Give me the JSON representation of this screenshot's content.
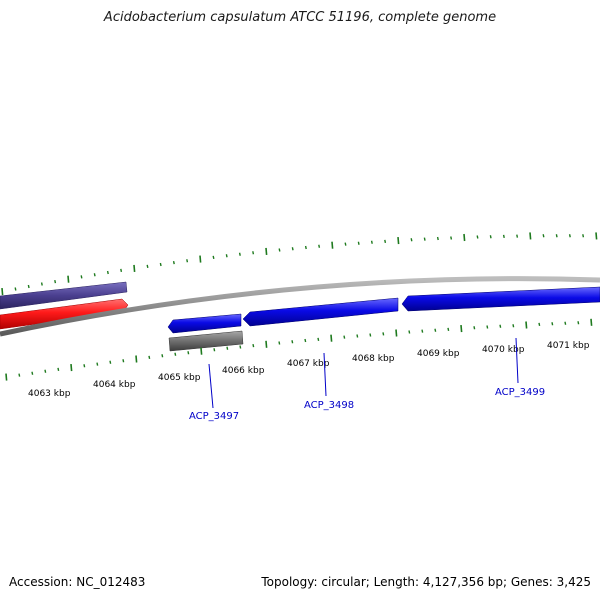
{
  "title": "Acidobacterium capsulatum ATCC 51196, complete genome",
  "footer": {
    "accession": "Accession: NC_012483",
    "summary": "Topology: circular; Length: 4,127,356 bp; Genes: 3,425"
  },
  "colors": {
    "background": "#ffffff",
    "backbone": "#8c8c8c",
    "tick": "#1e7a1e",
    "forward_track": "#4a3f8f",
    "red_track": "#ff1a1a",
    "reverse_gene": "#0a0ae6",
    "grey_feature": "#6e6e6e",
    "gene_label": "#0000c8"
  },
  "scale_labels": [
    "4063 kbp",
    "4064 kbp",
    "4065 kbp",
    "4066 kbp",
    "4067 kbp",
    "4068 kbp",
    "4069 kbp",
    "4070 kbp",
    "4071 kbp"
  ],
  "gene_labels": [
    "ACP_3497",
    "ACP_3498",
    "ACP_3499"
  ]
}
